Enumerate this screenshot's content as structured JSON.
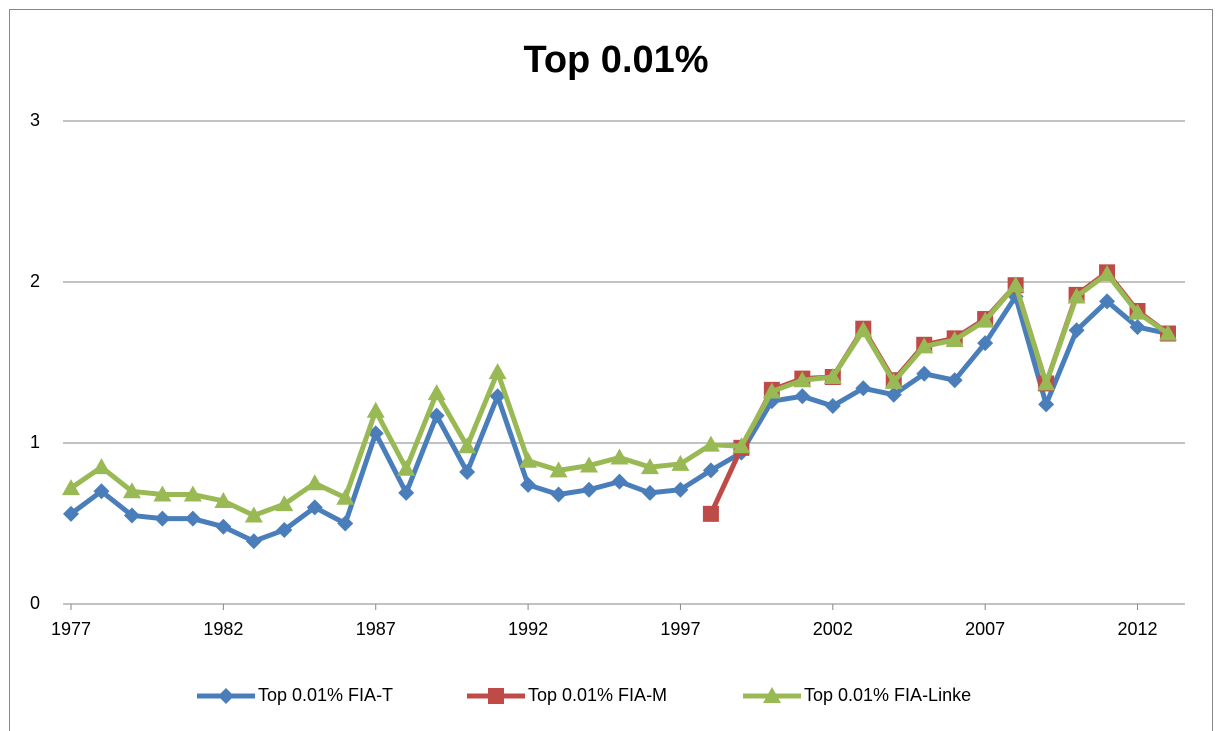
{
  "chart_data": {
    "type": "line",
    "title": "Top 0.01%",
    "x": [
      1977,
      1978,
      1979,
      1980,
      1981,
      1982,
      1983,
      1984,
      1985,
      1986,
      1987,
      1988,
      1989,
      1990,
      1991,
      1992,
      1993,
      1994,
      1995,
      1996,
      1997,
      1998,
      1999,
      2000,
      2001,
      2002,
      2003,
      2004,
      2005,
      2006,
      2007,
      2008,
      2009,
      2010,
      2011,
      2012,
      2013
    ],
    "xlim": [
      1977,
      2013
    ],
    "xticks": [
      1977,
      1982,
      1987,
      1992,
      1997,
      2002,
      2007,
      2012
    ],
    "ylim": [
      0,
      3
    ],
    "yticks": [
      0,
      1,
      2,
      3
    ],
    "grid": true,
    "legend": "bottom",
    "series": [
      {
        "name": "Top 0.01% FIA-T",
        "color": "#4a7ebb",
        "marker": "diamond",
        "values": [
          0.56,
          0.7,
          0.55,
          0.53,
          0.53,
          0.48,
          0.39,
          0.46,
          0.6,
          0.5,
          1.06,
          0.69,
          1.17,
          0.82,
          1.29,
          0.74,
          0.68,
          0.71,
          0.76,
          0.69,
          0.71,
          0.83,
          0.94,
          1.26,
          1.29,
          1.23,
          1.34,
          1.3,
          1.43,
          1.39,
          1.62,
          1.91,
          1.24,
          1.7,
          1.88,
          1.72,
          1.68
        ]
      },
      {
        "name": "Top 0.01% FIA-M",
        "color": "#be4b48",
        "marker": "square",
        "values": [
          null,
          null,
          null,
          null,
          null,
          null,
          null,
          null,
          null,
          null,
          null,
          null,
          null,
          null,
          null,
          null,
          null,
          null,
          null,
          null,
          null,
          0.56,
          0.97,
          1.33,
          1.4,
          1.41,
          1.71,
          1.39,
          1.61,
          1.65,
          1.77,
          1.98,
          1.37,
          1.92,
          2.06,
          1.82,
          1.68
        ]
      },
      {
        "name": "Top 0.01% FIA-Linke",
        "color": "#98b954",
        "marker": "triangle",
        "values": [
          0.72,
          0.85,
          0.7,
          0.68,
          0.68,
          0.64,
          0.55,
          0.62,
          0.75,
          0.66,
          1.2,
          0.84,
          1.31,
          0.98,
          1.44,
          0.89,
          0.83,
          0.86,
          0.91,
          0.85,
          0.87,
          0.99,
          0.98,
          1.32,
          1.39,
          1.41,
          1.7,
          1.38,
          1.6,
          1.64,
          1.76,
          1.98,
          1.37,
          1.91,
          2.05,
          1.81,
          1.68
        ]
      }
    ]
  }
}
